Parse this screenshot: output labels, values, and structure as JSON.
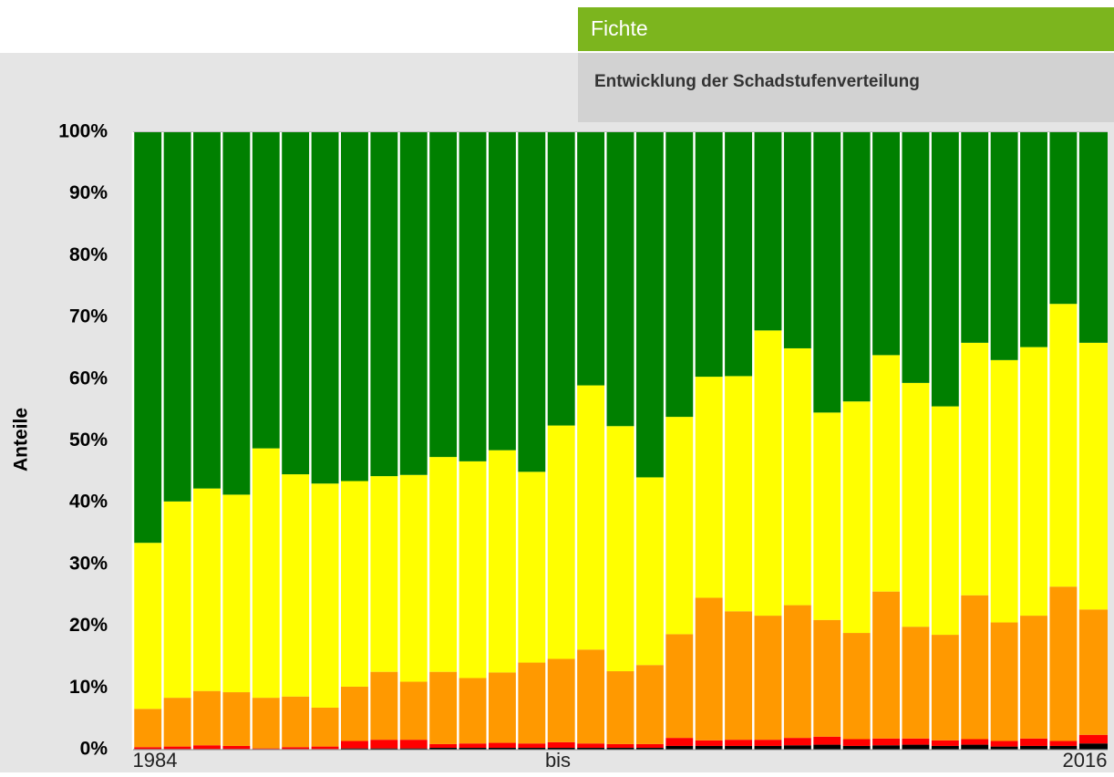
{
  "chart_data": {
    "type": "stacked_bar",
    "title": "Fichte",
    "subtitle": "Entwicklung der Schadstufenverteilung",
    "ylabel": "Anteile",
    "annotations": [
      "1984",
      "bis",
      "2016"
    ],
    "categories": [
      null,
      null,
      null,
      null,
      null,
      null,
      null,
      null,
      null,
      null,
      null,
      null,
      null,
      null,
      null,
      null,
      null,
      null,
      null,
      null,
      null,
      null,
      null,
      null,
      null,
      null,
      null,
      null,
      null,
      null,
      null,
      null,
      null
    ],
    "series": [
      {
        "color": "#000000",
        "values": [
          0.1,
          0.1,
          0.1,
          0.1,
          0.1,
          0.1,
          0.1,
          0.2,
          0.2,
          0.2,
          0.3,
          0.3,
          0.3,
          0.3,
          0.3,
          0.3,
          0.3,
          0.3,
          0.6,
          0.6,
          0.6,
          0.6,
          0.7,
          0.8,
          0.6,
          0.7,
          0.8,
          0.6,
          0.8,
          0.5,
          0.6,
          0.6,
          1.0
        ]
      },
      {
        "color": "#ff0000",
        "values": [
          0.3,
          0.4,
          0.6,
          0.5,
          0.1,
          0.3,
          0.4,
          1.2,
          1.4,
          1.4,
          0.6,
          0.7,
          0.8,
          0.7,
          0.9,
          0.7,
          0.6,
          0.6,
          1.3,
          0.9,
          1.0,
          1.0,
          1.2,
          1.3,
          1.1,
          1.1,
          1.0,
          0.9,
          0.9,
          0.9,
          1.2,
          0.8,
          1.4
        ]
      },
      {
        "color": "#ff9900",
        "values": [
          6.2,
          7.9,
          8.8,
          8.7,
          8.2,
          8.2,
          6.3,
          8.8,
          11.0,
          9.4,
          11.7,
          10.6,
          11.4,
          13.1,
          13.5,
          15.2,
          11.8,
          12.8,
          16.8,
          23.1,
          20.8,
          20.1,
          21.5,
          18.9,
          17.2,
          23.8,
          18.1,
          17.1,
          23.3,
          19.2,
          19.9,
          25.0,
          20.3
        ]
      },
      {
        "color": "#ffff00",
        "values": [
          26.9,
          31.8,
          32.8,
          32.0,
          40.4,
          36.0,
          36.3,
          33.3,
          31.7,
          33.5,
          34.8,
          35.1,
          36.0,
          30.9,
          37.8,
          42.8,
          39.7,
          30.4,
          35.2,
          35.8,
          38.1,
          46.2,
          41.6,
          33.6,
          37.5,
          38.3,
          39.5,
          37.0,
          40.9,
          42.5,
          43.5,
          45.8,
          43.2
        ]
      },
      {
        "color": "#008000",
        "values": [
          66.5,
          59.8,
          57.7,
          58.7,
          51.2,
          55.4,
          56.9,
          56.5,
          55.7,
          55.5,
          52.6,
          53.3,
          51.5,
          55.0,
          47.5,
          41.0,
          47.6,
          55.9,
          46.1,
          39.6,
          39.5,
          32.1,
          35.0,
          45.4,
          43.6,
          36.1,
          40.6,
          44.4,
          34.1,
          36.9,
          34.8,
          27.8,
          34.1
        ]
      }
    ],
    "ylim": [
      0,
      100
    ],
    "yticks": [
      {
        "value": 0,
        "label": "0%"
      },
      {
        "value": 10,
        "label": "10%"
      },
      {
        "value": 20,
        "label": "20%"
      },
      {
        "value": 30,
        "label": "30%"
      },
      {
        "value": 40,
        "label": "40%"
      },
      {
        "value": 50,
        "label": "50%"
      },
      {
        "value": 60,
        "label": "60%"
      },
      {
        "value": 70,
        "label": "70%"
      },
      {
        "value": 80,
        "label": "80%"
      },
      {
        "value": 90,
        "label": "90%"
      },
      {
        "value": 100,
        "label": "100%"
      }
    ],
    "grid": true
  }
}
